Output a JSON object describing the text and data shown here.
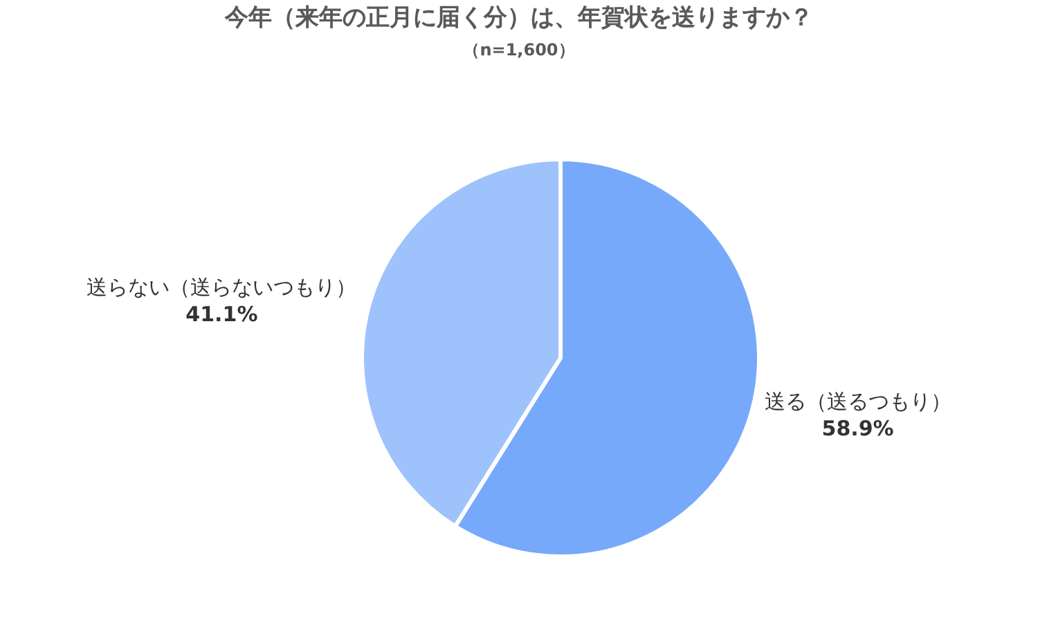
{
  "chart_data": {
    "type": "pie",
    "title": "今年（来年の正月に届く分）は、年賀状を送りますか？",
    "subtitle": "（n=1,600）",
    "categories": [
      "送る（送るつもり）",
      "送らない（送らないつもり）"
    ],
    "values": [
      58.9,
      41.1
    ],
    "value_labels": [
      "58.9%",
      "41.1%"
    ],
    "colors": [
      "#77a9fb",
      "#9ec2fc"
    ],
    "legend": false
  }
}
